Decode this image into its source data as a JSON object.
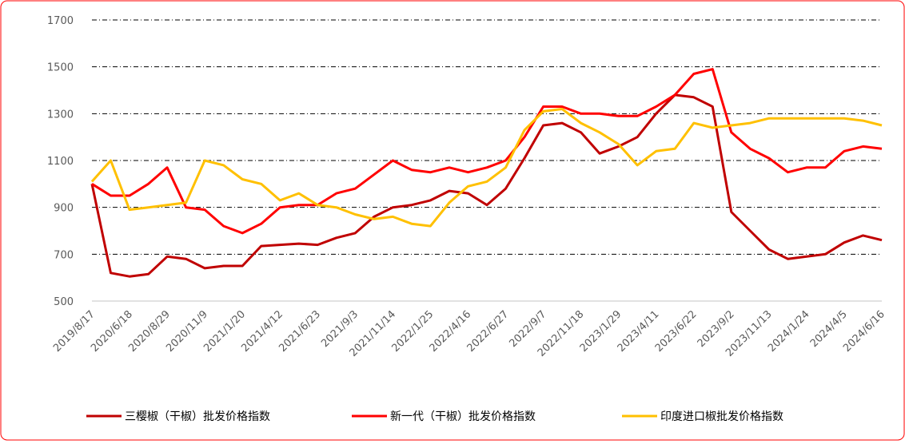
{
  "chart_data": {
    "type": "line",
    "categories": [
      "2019/8/17",
      null,
      "2020/6/18",
      null,
      "2020/8/29",
      null,
      "2020/11/9",
      null,
      "2021/1/20",
      null,
      "2021/4/12",
      null,
      "2021/6/23",
      null,
      "2021/9/3",
      null,
      "2021/11/14",
      null,
      "2022/1/25",
      null,
      "2022/4/16",
      null,
      "2022/6/27",
      null,
      "2022/9/7",
      null,
      "2022/11/18",
      null,
      "2023/1/29",
      null,
      "2023/4/11",
      null,
      "2023/6/22",
      null,
      "2023/9/2",
      null,
      "2023/11/13",
      null,
      "2024/1/24",
      null,
      "2024/4/5",
      null,
      "2024/6/16"
    ],
    "series": [
      {
        "name": "三樱椒（干椒）批发价格指数",
        "color": "#c00000",
        "values": [
          1000,
          620,
          605,
          615,
          690,
          680,
          640,
          650,
          650,
          735,
          740,
          745,
          740,
          770,
          790,
          860,
          900,
          910,
          930,
          970,
          960,
          910,
          980,
          1110,
          1250,
          1260,
          1220,
          1130,
          1160,
          1200,
          1300,
          1380,
          1370,
          1330,
          880,
          800,
          720,
          680,
          690,
          700,
          750,
          780,
          760
        ]
      },
      {
        "name": "新一代（干椒）批发价格指数",
        "color": "#ff0000",
        "values": [
          1000,
          950,
          950,
          1000,
          1070,
          900,
          890,
          820,
          790,
          830,
          900,
          910,
          910,
          960,
          980,
          1040,
          1100,
          1060,
          1050,
          1070,
          1050,
          1070,
          1100,
          1200,
          1330,
          1330,
          1300,
          1300,
          1290,
          1290,
          1330,
          1380,
          1470,
          1490,
          1220,
          1150,
          1110,
          1050,
          1070,
          1070,
          1140,
          1160,
          1150
        ]
      },
      {
        "name": "印度进口椒批发价格指数",
        "color": "#ffc000",
        "values": [
          1010,
          1100,
          890,
          900,
          910,
          920,
          1100,
          1080,
          1020,
          1000,
          930,
          960,
          910,
          900,
          870,
          850,
          860,
          830,
          820,
          920,
          990,
          1010,
          1070,
          1230,
          1310,
          1320,
          1260,
          1220,
          1170,
          1080,
          1140,
          1150,
          1260,
          1240,
          1250,
          1260,
          1280,
          1280,
          1280,
          1280,
          1280,
          1270,
          1250
        ]
      }
    ],
    "ylim": [
      500,
      1700
    ],
    "yticks": [
      500,
      700,
      900,
      1100,
      1300,
      1500,
      1700
    ],
    "grid": true,
    "legend": "bottom"
  }
}
